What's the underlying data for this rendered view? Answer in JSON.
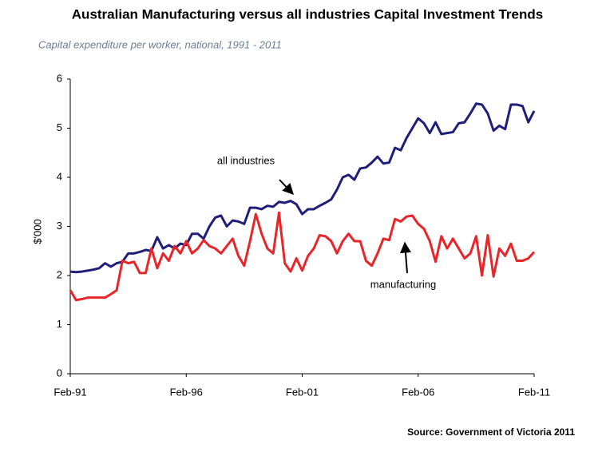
{
  "chart_data": {
    "type": "line",
    "title": "Australian Manufacturing versus all industries Capital Investment Trends",
    "subtitle": "Capital expenditure per worker, national, 1991 - 2011",
    "y_label": "$'000",
    "source": "Source: Government of Victoria 2011",
    "annotations": [
      "all industries",
      "manufacturing"
    ],
    "categories": [
      "Feb-91",
      null,
      null,
      null,
      null,
      null,
      null,
      null,
      null,
      null,
      null,
      null,
      null,
      null,
      null,
      null,
      null,
      null,
      null,
      null,
      "Feb-96",
      null,
      null,
      null,
      null,
      null,
      null,
      null,
      null,
      null,
      null,
      null,
      null,
      null,
      null,
      null,
      null,
      null,
      null,
      null,
      "Feb-01",
      null,
      null,
      null,
      null,
      null,
      null,
      null,
      null,
      null,
      null,
      null,
      null,
      null,
      null,
      null,
      null,
      null,
      null,
      null,
      "Feb-06",
      null,
      null,
      null,
      null,
      null,
      null,
      null,
      null,
      null,
      null,
      null,
      null,
      null,
      null,
      null,
      null,
      null,
      null,
      null,
      "Feb-11"
    ],
    "series": [
      {
        "name": "all industries",
        "color": "#1f1f7a",
        "values": [
          2.08,
          2.07,
          2.08,
          2.1,
          2.12,
          2.15,
          2.25,
          2.18,
          2.25,
          2.28,
          2.45,
          2.45,
          2.48,
          2.52,
          2.5,
          2.78,
          2.55,
          2.62,
          2.55,
          2.65,
          2.62,
          2.85,
          2.85,
          2.75,
          3.0,
          3.18,
          3.22,
          3.0,
          3.12,
          3.1,
          3.05,
          3.38,
          3.38,
          3.35,
          3.42,
          3.4,
          3.5,
          3.48,
          3.52,
          3.45,
          3.25,
          3.35,
          3.35,
          3.42,
          3.48,
          3.55,
          3.75,
          4.0,
          4.05,
          3.95,
          4.18,
          4.2,
          4.3,
          4.42,
          4.28,
          4.3,
          4.6,
          4.55,
          4.8,
          5.0,
          5.2,
          5.1,
          4.9,
          5.12,
          4.88,
          4.9,
          4.92,
          5.1,
          5.12,
          5.3,
          5.5,
          5.48,
          5.3,
          4.95,
          5.05,
          4.98,
          5.48,
          5.48,
          5.45,
          5.12,
          5.35
        ]
      },
      {
        "name": "manufacturing",
        "color": "#e8262a",
        "values": [
          1.7,
          1.5,
          1.52,
          1.55,
          1.55,
          1.55,
          1.55,
          1.62,
          1.7,
          2.3,
          2.25,
          2.28,
          2.05,
          2.05,
          2.55,
          2.15,
          2.45,
          2.3,
          2.6,
          2.45,
          2.7,
          2.45,
          2.55,
          2.72,
          2.6,
          2.55,
          2.45,
          2.6,
          2.75,
          2.4,
          2.2,
          2.7,
          3.25,
          2.85,
          2.55,
          2.45,
          3.28,
          2.25,
          2.08,
          2.35,
          2.1,
          2.4,
          2.55,
          2.82,
          2.8,
          2.7,
          2.45,
          2.7,
          2.85,
          2.7,
          2.7,
          2.3,
          2.2,
          2.45,
          2.75,
          2.72,
          3.15,
          3.1,
          3.2,
          3.22,
          3.05,
          2.95,
          2.7,
          2.28,
          2.8,
          2.55,
          2.75,
          2.55,
          2.35,
          2.45,
          2.8,
          2.0,
          2.82,
          1.98,
          2.55,
          2.4,
          2.65,
          2.3,
          2.3,
          2.35,
          2.48
        ]
      }
    ],
    "ylim": [
      0,
      6
    ],
    "yticks": [
      0,
      1,
      2,
      3,
      4,
      5,
      6
    ],
    "grid": false
  }
}
